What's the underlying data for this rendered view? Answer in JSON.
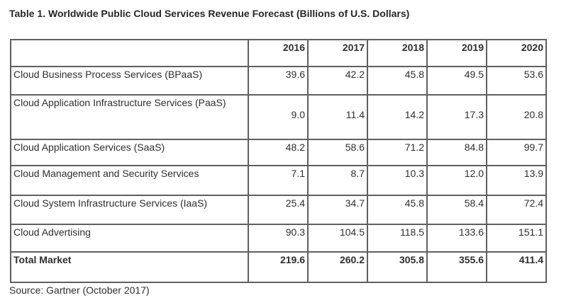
{
  "chart_data": {
    "type": "table",
    "title": "Table 1. Worldwide Public Cloud Services Revenue Forecast (Billions of U.S. Dollars)",
    "columns": [
      "2016",
      "2017",
      "2018",
      "2019",
      "2020"
    ],
    "rows": [
      {
        "label": "Cloud Business Process Services (BPaaS)",
        "values": [
          "39.6",
          "42.2",
          "45.8",
          "49.5",
          "53.6"
        ]
      },
      {
        "label": "Cloud Application Infrastructure Services (PaaS)",
        "values": [
          "9.0",
          "11.4",
          "14.2",
          "17.3",
          "20.8"
        ]
      },
      {
        "label": "Cloud Application Services (SaaS)",
        "values": [
          "48.2",
          "58.6",
          "71.2",
          "84.8",
          "99.7"
        ]
      },
      {
        "label": "Cloud Management and Security Services",
        "values": [
          "7.1",
          "8.7",
          "10.3",
          "12.0",
          "13.9"
        ]
      },
      {
        "label": "Cloud System Infrastructure Services (IaaS)",
        "values": [
          "25.4",
          "34.7",
          "45.8",
          "58.4",
          "72.4"
        ]
      },
      {
        "label": "Cloud Advertising",
        "values": [
          "90.3",
          "104.5",
          "118.5",
          "133.6",
          "151.1"
        ]
      },
      {
        "label": "Total Market",
        "values": [
          "219.6",
          "260.2",
          "305.8",
          "355.6",
          "411.4"
        ],
        "bold": true
      }
    ],
    "source": "Source: Gartner (October 2017)",
    "layout": {
      "value_alignment": "right",
      "grid": true
    }
  },
  "colors": {
    "background": "#ffffff",
    "text": "#2e2e2e",
    "border": "#5f5f5f"
  }
}
